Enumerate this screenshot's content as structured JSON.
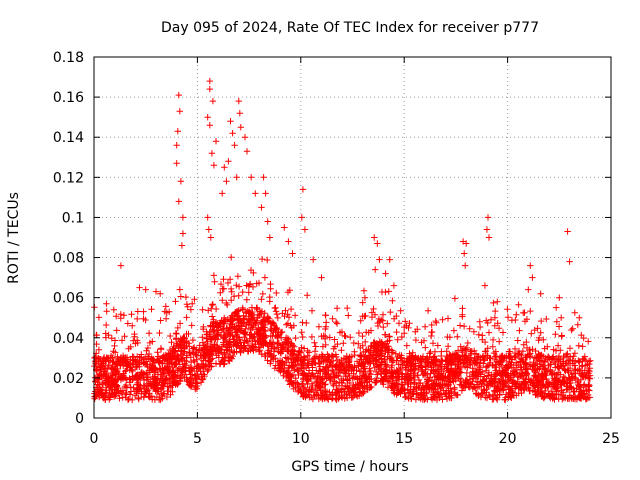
{
  "chart_data": {
    "type": "scatter",
    "title": "Day 095 of 2024, Rate Of TEC Index for receiver p777",
    "xlabel": "GPS time / hours",
    "ylabel": "ROTI / TECUs",
    "xlim": [
      0,
      25
    ],
    "ylim": [
      0,
      0.18
    ],
    "xticks": [
      0,
      5,
      10,
      15,
      20,
      25
    ],
    "yticks": [
      0,
      0.02,
      0.04,
      0.06,
      0.08,
      0.1,
      0.12,
      0.14,
      0.16,
      0.18
    ],
    "ytick_labels": [
      "0",
      "0.02",
      "0.04",
      "0.06",
      "0.08",
      "0.1",
      "0.12",
      "0.14",
      "0.16",
      "0.18"
    ],
    "grid": true,
    "marker": "+",
    "color": "#ff0000",
    "x_range_data": [
      0,
      24
    ],
    "baseline_roti": 0.02,
    "outliers": [
      {
        "x": 4.1,
        "y": 0.161
      },
      {
        "x": 4.15,
        "y": 0.153
      },
      {
        "x": 4.05,
        "y": 0.143
      },
      {
        "x": 4.0,
        "y": 0.136
      },
      {
        "x": 4.0,
        "y": 0.127
      },
      {
        "x": 4.2,
        "y": 0.118
      },
      {
        "x": 4.1,
        "y": 0.108
      },
      {
        "x": 4.3,
        "y": 0.1
      },
      {
        "x": 4.3,
        "y": 0.092
      },
      {
        "x": 4.25,
        "y": 0.086
      },
      {
        "x": 5.6,
        "y": 0.168
      },
      {
        "x": 5.6,
        "y": 0.164
      },
      {
        "x": 5.75,
        "y": 0.158
      },
      {
        "x": 5.5,
        "y": 0.15
      },
      {
        "x": 5.6,
        "y": 0.146
      },
      {
        "x": 5.9,
        "y": 0.138
      },
      {
        "x": 5.7,
        "y": 0.132
      },
      {
        "x": 5.8,
        "y": 0.126
      },
      {
        "x": 5.5,
        "y": 0.1
      },
      {
        "x": 5.55,
        "y": 0.094
      },
      {
        "x": 5.65,
        "y": 0.09
      },
      {
        "x": 6.6,
        "y": 0.148
      },
      {
        "x": 6.7,
        "y": 0.142
      },
      {
        "x": 6.8,
        "y": 0.136
      },
      {
        "x": 6.5,
        "y": 0.128
      },
      {
        "x": 6.9,
        "y": 0.12
      },
      {
        "x": 7.0,
        "y": 0.158
      },
      {
        "x": 7.05,
        "y": 0.152
      },
      {
        "x": 7.1,
        "y": 0.145
      },
      {
        "x": 6.3,
        "y": 0.125
      },
      {
        "x": 6.4,
        "y": 0.118
      },
      {
        "x": 6.2,
        "y": 0.112
      },
      {
        "x": 7.3,
        "y": 0.14
      },
      {
        "x": 7.4,
        "y": 0.133
      },
      {
        "x": 7.6,
        "y": 0.12
      },
      {
        "x": 7.8,
        "y": 0.112
      },
      {
        "x": 8.2,
        "y": 0.12
      },
      {
        "x": 8.3,
        "y": 0.112
      },
      {
        "x": 8.1,
        "y": 0.105
      },
      {
        "x": 8.4,
        "y": 0.098
      },
      {
        "x": 8.5,
        "y": 0.09
      },
      {
        "x": 9.2,
        "y": 0.095
      },
      {
        "x": 9.4,
        "y": 0.088
      },
      {
        "x": 9.6,
        "y": 0.082
      },
      {
        "x": 10.1,
        "y": 0.114
      },
      {
        "x": 10.05,
        "y": 0.1
      },
      {
        "x": 10.2,
        "y": 0.094
      },
      {
        "x": 10.6,
        "y": 0.079
      },
      {
        "x": 11.0,
        "y": 0.07
      },
      {
        "x": 13.55,
        "y": 0.09
      },
      {
        "x": 13.7,
        "y": 0.087
      },
      {
        "x": 13.8,
        "y": 0.079
      },
      {
        "x": 13.6,
        "y": 0.074
      },
      {
        "x": 14.3,
        "y": 0.079
      },
      {
        "x": 14.1,
        "y": 0.072
      },
      {
        "x": 14.5,
        "y": 0.066
      },
      {
        "x": 17.85,
        "y": 0.088
      },
      {
        "x": 18.0,
        "y": 0.087
      },
      {
        "x": 17.9,
        "y": 0.082
      },
      {
        "x": 17.95,
        "y": 0.076
      },
      {
        "x": 18.9,
        "y": 0.066
      },
      {
        "x": 19.05,
        "y": 0.1
      },
      {
        "x": 19.0,
        "y": 0.094
      },
      {
        "x": 19.1,
        "y": 0.09
      },
      {
        "x": 19.5,
        "y": 0.058
      },
      {
        "x": 21.1,
        "y": 0.076
      },
      {
        "x": 21.2,
        "y": 0.07
      },
      {
        "x": 21.0,
        "y": 0.064
      },
      {
        "x": 21.6,
        "y": 0.062
      },
      {
        "x": 22.5,
        "y": 0.06
      },
      {
        "x": 22.9,
        "y": 0.093
      },
      {
        "x": 23.0,
        "y": 0.078
      },
      {
        "x": 1.3,
        "y": 0.076
      },
      {
        "x": 0.6,
        "y": 0.057
      },
      {
        "x": 2.2,
        "y": 0.065
      },
      {
        "x": 2.5,
        "y": 0.064
      },
      {
        "x": 3.0,
        "y": 0.063
      },
      {
        "x": 3.2,
        "y": 0.062
      }
    ]
  }
}
